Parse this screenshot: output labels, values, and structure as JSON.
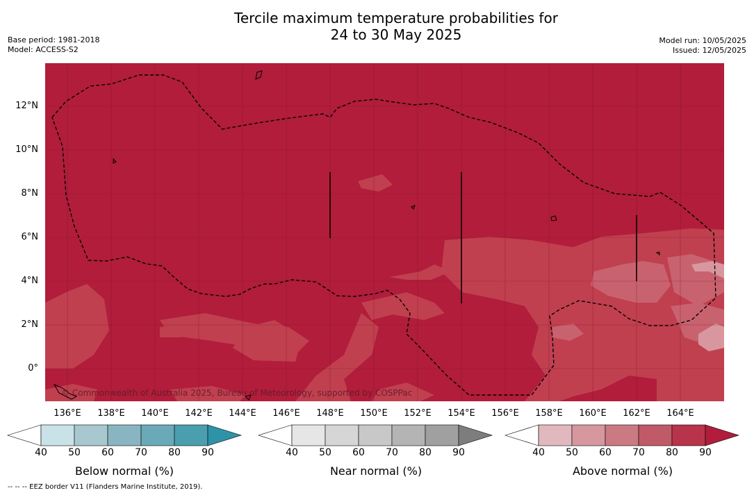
{
  "title_line1": "Tercile maximum temperature probabilities for",
  "title_line2": "24 to 30 May 2025",
  "base_period": "Base period: 1981-2018",
  "model": "Model: ACCESS-S2",
  "model_run": "Model run: 10/05/2025",
  "issued": "Issued: 12/05/2025",
  "copyright": "© Commonwealth of Australia 2025, Bureau of Meteorology, supported by COSPPac",
  "footnote": "--  --  -- EEZ border V11 (Flanders Marine Institute, 2019).",
  "lat_labels": [
    "12°N",
    "10°N",
    "8°N",
    "6°N",
    "4°N",
    "2°N",
    "0°"
  ],
  "lon_labels": [
    "136°E",
    "138°E",
    "140°E",
    "142°E",
    "144°E",
    "146°E",
    "148°E",
    "150°E",
    "152°E",
    "154°E",
    "156°E",
    "158°E",
    "160°E",
    "162°E",
    "164°E"
  ],
  "colorbars": [
    {
      "label": "Below normal (%)",
      "ticks": [
        "40",
        "50",
        "60",
        "70",
        "80",
        "90"
      ],
      "colors": [
        "#ffffff",
        "#c9e2e8",
        "#a8c8cf",
        "#88b5c0",
        "#6aaab8",
        "#4a9fae",
        "#2e93a7"
      ]
    },
    {
      "label": "Near normal (%)",
      "ticks": [
        "40",
        "50",
        "60",
        "70",
        "80",
        "90"
      ],
      "colors": [
        "#ffffff",
        "#e6e6e6",
        "#d6d6d6",
        "#c8c8c8",
        "#b4b4b4",
        "#a0a0a0",
        "#7d7d7d"
      ]
    },
    {
      "label": "Above normal (%)",
      "ticks": [
        "40",
        "50",
        "60",
        "70",
        "80",
        "90"
      ],
      "colors": [
        "#ffffff",
        "#e2b8bf",
        "#d6979f",
        "#cb7a83",
        "#c15a68",
        "#b8344b",
        "#b11d3b"
      ]
    }
  ],
  "map_colors": {
    "dominant": "#b11d3b",
    "lighter": "#c04454",
    "lightest": "#d79aa3"
  }
}
